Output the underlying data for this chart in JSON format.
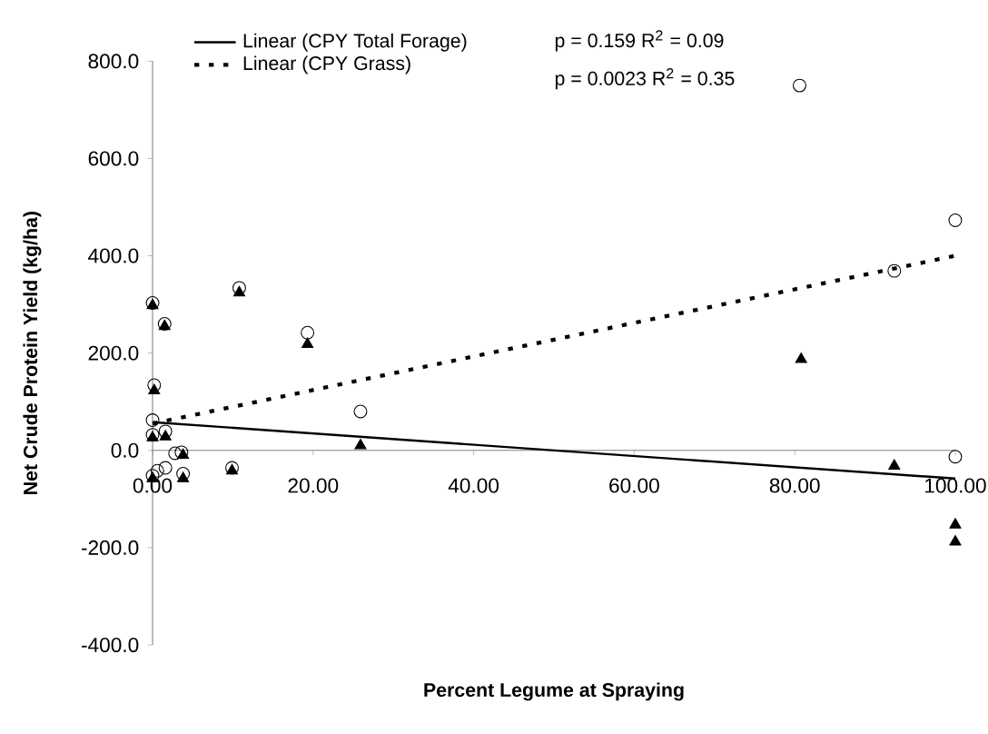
{
  "chart_data": {
    "type": "scatter",
    "xlabel": "Percent Legume at Spraying",
    "ylabel": "Net Crude Protein Yield (kg/ha)",
    "annotations": [
      "p = 0.159 R$^{2}$ = 0.09",
      "p = 0.0023 R$^{2}$ = 0.35"
    ],
    "xlim": [
      0,
      100
    ],
    "ylim": [
      -400,
      800
    ],
    "xticks": [
      {
        "value": 0,
        "label": "0.00"
      },
      {
        "value": 20,
        "label": "20.00"
      },
      {
        "value": 40,
        "label": "40.00"
      },
      {
        "value": 60,
        "label": "60.00"
      },
      {
        "value": 80,
        "label": "80.00"
      },
      {
        "value": 100,
        "label": "100.00"
      }
    ],
    "yticks": [
      {
        "value": -400,
        "label": "-400.0"
      },
      {
        "value": -200,
        "label": "-200.0"
      },
      {
        "value": 0,
        "label": "0.0"
      },
      {
        "value": 200,
        "label": "200.0"
      },
      {
        "value": 400,
        "label": "400.0"
      },
      {
        "value": 600,
        "label": "600.0"
      },
      {
        "value": 800,
        "label": "800.0"
      }
    ],
    "grid": false,
    "legend": "top left",
    "series": [
      {
        "type": "scatter",
        "marker": "triangle",
        "color": "#000000",
        "x": [
          80.8,
          92.4,
          100,
          100,
          25.9,
          19.3,
          10.8,
          0,
          1.5,
          0.2,
          0,
          1.6,
          3.8,
          9.9,
          3.8,
          0
        ],
        "values": [
          187,
          -32,
          -153,
          -188,
          10,
          218,
          324,
          298,
          255,
          123,
          26,
          28,
          -10,
          -42,
          -58,
          -58
        ]
      },
      {
        "type": "scatter",
        "marker": "circle",
        "color": "#000000",
        "x": [
          80.6,
          100,
          92.4,
          0,
          1.5,
          10.8,
          19.3,
          25.9,
          100,
          0.2,
          0,
          0,
          0.8,
          1.6,
          2.8,
          3.6,
          9.9,
          3.8,
          0.6,
          0,
          1.6
        ],
        "values": [
          750,
          473,
          369,
          303,
          260,
          334,
          242,
          80,
          -13,
          134,
          62,
          32,
          null,
          39,
          -6,
          -4,
          -36,
          -48,
          -42,
          -52,
          -36
        ]
      },
      {
        "type": "line",
        "name": "Linear (CPY Total Forage)",
        "color": "#000000",
        "line_style": "solid",
        "marker": "none",
        "x": [
          0,
          100
        ],
        "values": [
          58,
          -58
        ]
      },
      {
        "type": "line",
        "name": "Linear (CPY Grass)",
        "color": "#000000",
        "line_style": "dotted",
        "marker": "none",
        "x": [
          0,
          100
        ],
        "values": [
          55,
          400
        ]
      }
    ]
  }
}
